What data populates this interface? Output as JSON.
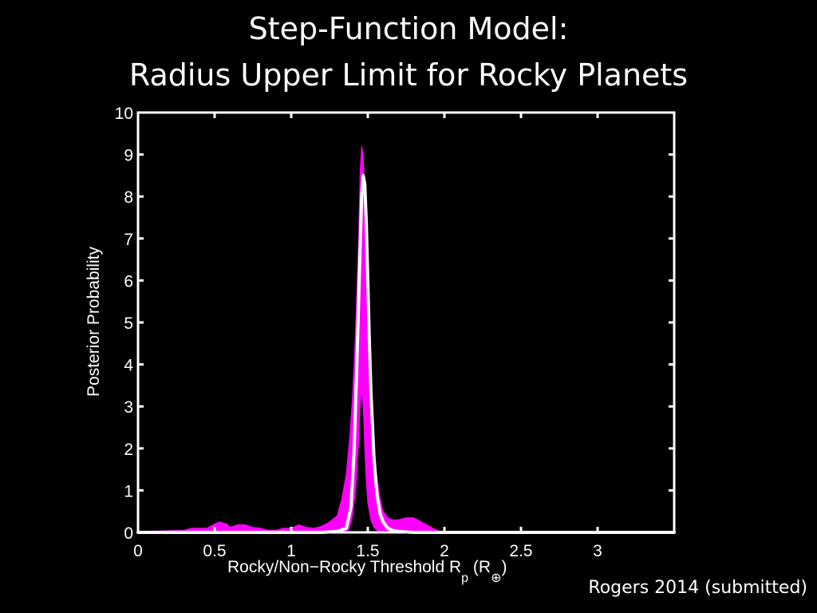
{
  "header": {
    "title_line1": "Step-Function Model:",
    "title_line2": "Radius Upper Limit for Rocky Planets"
  },
  "citation": "Rogers 2014 (submitted)",
  "axes": {
    "ylabel": "Posterior Probability",
    "xlabel_main": "Rocky/Non−Rocky Threshold R",
    "xlabel_sub": "p",
    "xlabel_open": " (R",
    "xlabel_unit_sub": "⊕",
    "xlabel_close": ")"
  },
  "colors": {
    "background": "#000000",
    "band": "#ff00ff",
    "median_line": "#ffffff",
    "axes": "#ffffff"
  },
  "chart_data": {
    "type": "area",
    "title": "Step-Function Model: Radius Upper Limit for Rocky Planets",
    "xlabel": "Rocky/Non−Rocky Threshold Rp (R⊕)",
    "ylabel": "Posterior Probability",
    "xlim": [
      0,
      3.5
    ],
    "ylim": [
      0,
      10
    ],
    "xticks": [
      0,
      0.5,
      1,
      1.5,
      2,
      2.5,
      3
    ],
    "xtick_labels": [
      "0",
      "0.5",
      "1",
      "1.5",
      "2",
      "2.5",
      "3"
    ],
    "yticks": [
      0,
      1,
      2,
      3,
      4,
      5,
      6,
      7,
      8,
      9,
      10
    ],
    "ytick_labels": [
      "0",
      "1",
      "2",
      "3",
      "4",
      "5",
      "6",
      "7",
      "8",
      "9",
      "10"
    ],
    "grid": false,
    "series": [
      {
        "style": "band",
        "color": "#ff00ff",
        "x": [
          0,
          0.3,
          0.35,
          0.45,
          0.5,
          0.53,
          0.58,
          0.6,
          0.65,
          0.7,
          0.75,
          0.8,
          0.85,
          0.9,
          0.95,
          1.0,
          1.05,
          1.1,
          1.15,
          1.2,
          1.25,
          1.3,
          1.33,
          1.36,
          1.38,
          1.4,
          1.42,
          1.44,
          1.45,
          1.46,
          1.47,
          1.48,
          1.49,
          1.5,
          1.52,
          1.54,
          1.56,
          1.58,
          1.6,
          1.63,
          1.66,
          1.7,
          1.75,
          1.8,
          1.85,
          1.9,
          1.95,
          2.0,
          2.05,
          3.5
        ],
        "upper": [
          0.02,
          0.05,
          0.1,
          0.1,
          0.2,
          0.25,
          0.2,
          0.12,
          0.18,
          0.18,
          0.12,
          0.1,
          0.05,
          0.05,
          0.1,
          0.1,
          0.18,
          0.12,
          0.1,
          0.15,
          0.25,
          0.4,
          0.8,
          1.4,
          2.2,
          3.2,
          4.8,
          7.0,
          8.6,
          9.2,
          9.0,
          8.0,
          6.5,
          5.0,
          3.2,
          2.0,
          1.3,
          0.8,
          0.5,
          0.35,
          0.3,
          0.3,
          0.35,
          0.35,
          0.25,
          0.15,
          0.05,
          0.0,
          0.0,
          0.0
        ],
        "lower": [
          0,
          0,
          0,
          0,
          0,
          0,
          0,
          0,
          0,
          0,
          0,
          0,
          0,
          0,
          0,
          0,
          0,
          0,
          0,
          0,
          0,
          0,
          0,
          0,
          0.1,
          0.4,
          1.0,
          2.2,
          3.1,
          3.4,
          3.0,
          2.0,
          1.2,
          0.7,
          0.3,
          0.12,
          0.05,
          0,
          0,
          0,
          0,
          0,
          0,
          0,
          0,
          0,
          0,
          0,
          0,
          0
        ]
      },
      {
        "style": "line",
        "color": "#ffffff",
        "x": [
          0,
          1.2,
          1.3,
          1.36,
          1.39,
          1.41,
          1.43,
          1.45,
          1.46,
          1.47,
          1.48,
          1.49,
          1.5,
          1.51,
          1.52,
          1.54,
          1.56,
          1.58,
          1.6,
          1.63,
          1.66,
          1.7,
          1.8,
          3.5
        ],
        "y": [
          0,
          0,
          0.02,
          0.1,
          0.6,
          1.9,
          4.2,
          6.8,
          8.0,
          8.5,
          8.3,
          7.4,
          6.0,
          4.6,
          3.4,
          1.8,
          0.9,
          0.45,
          0.25,
          0.1,
          0.05,
          0.02,
          0,
          0
        ]
      }
    ]
  }
}
